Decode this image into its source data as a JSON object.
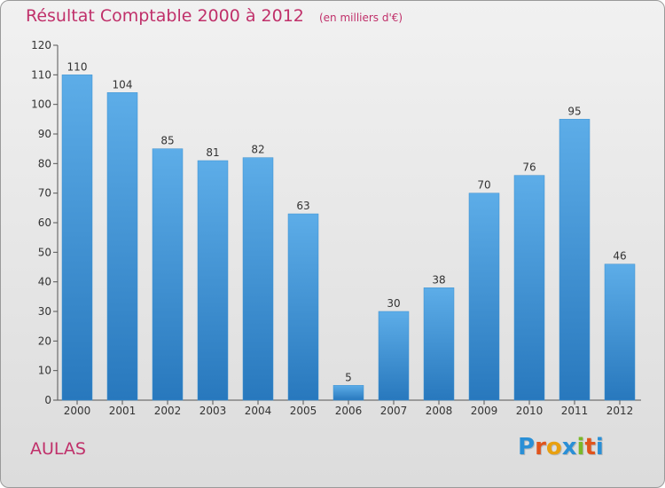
{
  "title": "Résultat Comptable 2000 à 2012",
  "unit": "(en milliers d'€)",
  "commune": "AULAS",
  "logo": {
    "letters": [
      "P",
      "r",
      "o",
      "x",
      "i",
      "t",
      "i"
    ],
    "colors": [
      "#2a8fd6",
      "#e0541c",
      "#e8a010",
      "#2a8fd6",
      "#7bb829",
      "#e0541c",
      "#2a8fd6"
    ]
  },
  "colors": {
    "bar_top": "#5dade8",
    "bar_bottom": "#2878bd",
    "title": "#c0306a"
  },
  "chart_data": {
    "type": "bar",
    "categories": [
      "2000",
      "2001",
      "2002",
      "2003",
      "2004",
      "2005",
      "2006",
      "2007",
      "2008",
      "2009",
      "2010",
      "2011",
      "2012"
    ],
    "values": [
      110,
      104,
      85,
      81,
      82,
      63,
      5,
      30,
      38,
      70,
      76,
      95,
      46
    ],
    "data_labels": [
      "110",
      "104",
      "85",
      "81",
      "82",
      "63",
      "5",
      "30",
      "38",
      "70",
      "76",
      "95",
      "46"
    ],
    "ylim": [
      0,
      120
    ],
    "yticks": [
      0,
      10,
      20,
      30,
      40,
      50,
      60,
      70,
      80,
      90,
      100,
      110,
      120
    ],
    "grid": false,
    "legend": "none",
    "xlabel": "",
    "ylabel": ""
  }
}
